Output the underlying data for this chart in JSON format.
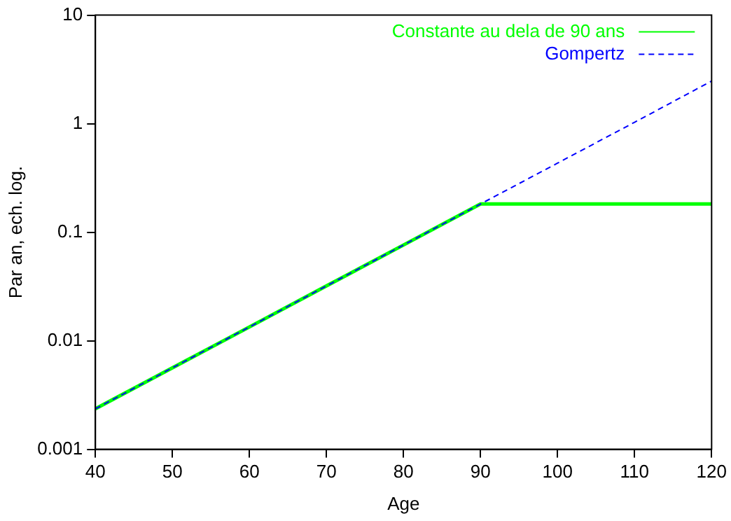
{
  "chart_data": {
    "type": "line",
    "xlabel": "Age",
    "ylabel": "Par an, ech. log.",
    "log": "y",
    "xlim": [
      40,
      120
    ],
    "xticks": [
      40,
      50,
      60,
      70,
      80,
      90,
      100,
      110,
      120
    ],
    "ylim": [
      0.001,
      10
    ],
    "yticks": [
      0.001,
      0.01,
      0.1,
      1,
      10
    ],
    "grid": false,
    "legend": "top right",
    "marker": "none",
    "series": [
      {
        "name": "Constante au dela de 90 ans",
        "color": "#00ff00",
        "line_style": "solid",
        "x": [
          40,
          50,
          60,
          70,
          80,
          90,
          100,
          110,
          120
        ],
        "values": [
          0.00236,
          0.00563,
          0.0134,
          0.032,
          0.0762,
          0.182,
          0.182,
          0.182,
          0.182
        ]
      },
      {
        "name": "Gompertz",
        "color": "#0000ff",
        "line_style": "dashed",
        "x": [
          40,
          50,
          60,
          70,
          80,
          90,
          100,
          110,
          120
        ],
        "values": [
          0.00236,
          0.00563,
          0.0134,
          0.032,
          0.0762,
          0.182,
          0.433,
          1.03,
          2.47
        ]
      }
    ]
  }
}
